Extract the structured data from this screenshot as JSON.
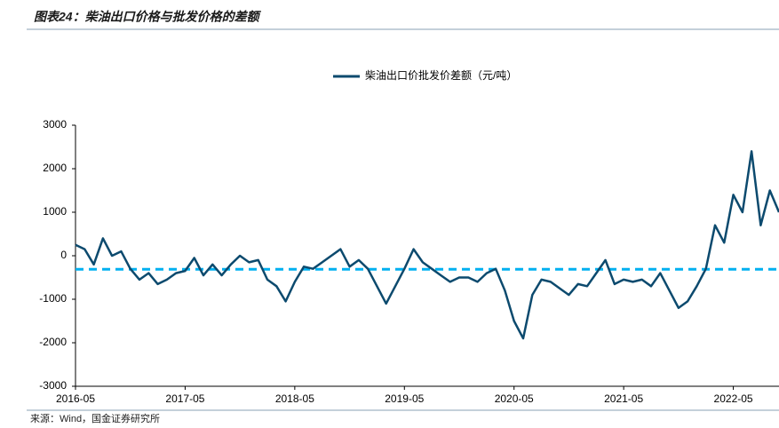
{
  "chart_data": {
    "type": "line",
    "title": "图表24：柴油出口价格与批发价格的差额",
    "source": "来源：Wind，国金证券研究所",
    "x": [
      "2016-05",
      "2016-06",
      "2016-07",
      "2016-08",
      "2016-09",
      "2016-10",
      "2016-11",
      "2016-12",
      "2017-01",
      "2017-02",
      "2017-03",
      "2017-04",
      "2017-05",
      "2017-06",
      "2017-07",
      "2017-08",
      "2017-09",
      "2017-10",
      "2017-11",
      "2017-12",
      "2018-01",
      "2018-02",
      "2018-03",
      "2018-04",
      "2018-05",
      "2018-06",
      "2018-07",
      "2018-08",
      "2018-09",
      "2018-10",
      "2018-11",
      "2018-12",
      "2019-01",
      "2019-02",
      "2019-03",
      "2019-04",
      "2019-05",
      "2019-06",
      "2019-07",
      "2019-08",
      "2019-09",
      "2019-10",
      "2019-11",
      "2019-12",
      "2020-01",
      "2020-02",
      "2020-03",
      "2020-04",
      "2020-05",
      "2020-06",
      "2020-07",
      "2020-08",
      "2020-09",
      "2020-10",
      "2020-11",
      "2020-12",
      "2021-01",
      "2021-02",
      "2021-03",
      "2021-04",
      "2021-05",
      "2021-06",
      "2021-07",
      "2021-08",
      "2021-09",
      "2021-10",
      "2021-11",
      "2021-12",
      "2022-01",
      "2022-02",
      "2022-03",
      "2022-04",
      "2022-05",
      "2022-06",
      "2022-07",
      "2022-08",
      "2022-09",
      "2022-10"
    ],
    "series": [
      {
        "name": "柴油出口价批发价差额（元/吨）",
        "color": "#0c4a6e",
        "values": [
          250,
          150,
          -200,
          400,
          0,
          100,
          -300,
          -550,
          -400,
          -650,
          -550,
          -400,
          -350,
          -50,
          -450,
          -200,
          -450,
          -200,
          0,
          -150,
          -100,
          -550,
          -700,
          -1050,
          -600,
          -250,
          -300,
          -150,
          0,
          150,
          -250,
          -100,
          -300,
          -700,
          -1100,
          -700,
          -300,
          150,
          -150,
          -300,
          -450,
          -600,
          -500,
          -500,
          -600,
          -400,
          -300,
          -800,
          -1500,
          -1900,
          -900,
          -550,
          -600,
          -750,
          -900,
          -650,
          -700,
          -400,
          -100,
          -650,
          -550,
          -600,
          -550,
          -700,
          -400,
          -800,
          -1200,
          -1050,
          -700,
          -300,
          700,
          300,
          1400,
          1000,
          2400,
          700,
          1500,
          1000
        ]
      }
    ],
    "reference_line": {
      "value": -310,
      "color": "#00b0f0"
    },
    "xlim": [
      "2016-05",
      "2022-10"
    ],
    "xticks": [
      "2016-05",
      "2017-05",
      "2018-05",
      "2019-05",
      "2020-05",
      "2021-05",
      "2022-05"
    ],
    "ylim": [
      -3000,
      3000
    ],
    "yticks": [
      -3000,
      -2000,
      -1000,
      0,
      1000,
      2000,
      3000
    ],
    "grid": false
  }
}
